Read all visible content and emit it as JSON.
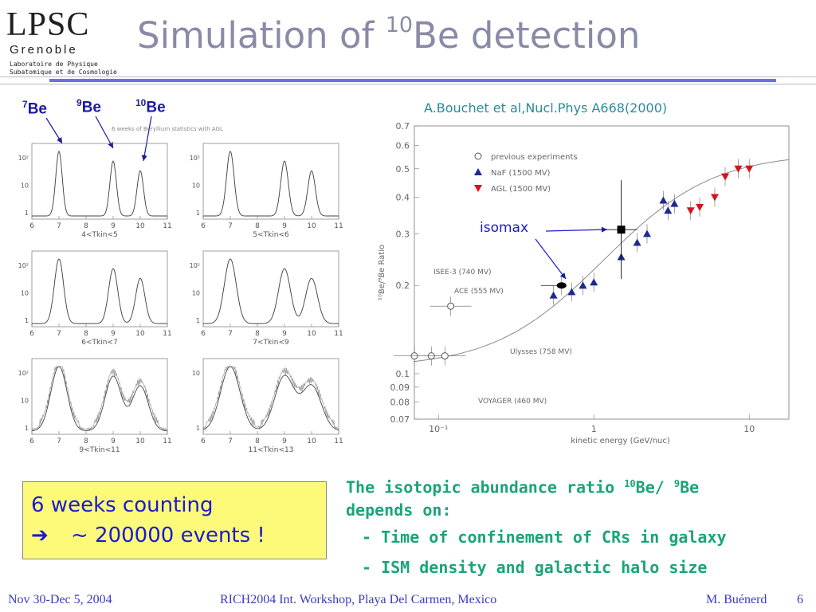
{
  "logo": {
    "main": "LPSC",
    "sub": "Grenoble",
    "lab_line1": "Laboratoire de Physique",
    "lab_line2": "Subatomique et de Cosmologie"
  },
  "title": {
    "prefix": "Simulation of ",
    "sup": "10",
    "suffix": "Be detection"
  },
  "isotopes": [
    {
      "sup": "7",
      "label": "Be"
    },
    {
      "sup": "9",
      "label": "Be"
    },
    {
      "sup": "10",
      "label": "Be"
    }
  ],
  "histograms": {
    "caption": "6 weeks of Beryllium statistics with AGL",
    "x_ticks": [
      "6",
      "7",
      "8",
      "9",
      "10",
      "11"
    ],
    "panels": [
      {
        "label": "4<Tkin<5",
        "y_ticks": [
          "10²",
          "10",
          "1"
        ]
      },
      {
        "label": "5<Tkin<6",
        "y_ticks": [
          "10²",
          "10",
          "1"
        ]
      },
      {
        "label": "6<Tkin<7",
        "y_ticks": [
          "10²",
          "10",
          "1"
        ]
      },
      {
        "label": "7<Tkin<9",
        "y_ticks": [
          "10²",
          "10",
          "1"
        ]
      },
      {
        "label": "9<Tkin<11",
        "y_ticks": [
          "10²",
          "10",
          "1"
        ]
      },
      {
        "label": "11<Tkin<13",
        "y_ticks": [
          "10",
          "1"
        ]
      }
    ]
  },
  "reference": "A.Bouchet et al,Nucl.Phys A668(2000)",
  "isomax_label": "isomax",
  "chart_data": {
    "type": "scatter",
    "xlabel": "kinetic energy (GeV/nuc)",
    "ylabel": "¹⁰Be/⁹Be Ratio",
    "x_scale": "log",
    "y_scale": "log",
    "xlim": [
      0.07,
      18
    ],
    "ylim": [
      0.07,
      0.7
    ],
    "x_ticks": [
      "10⁻¹",
      "1",
      "10"
    ],
    "y_ticks": [
      "0.7",
      "0.6",
      "0.5",
      "0.4",
      "0.3",
      "0.2",
      "0.1",
      "0.09",
      "0.08",
      "0.07"
    ],
    "legend": [
      "previous experiments",
      "NaF (1500 MV)",
      "AGL (1500 MV)"
    ],
    "annotations": [
      "ISEE-3 (740 MV)",
      "ACE (555 MV)",
      "Ulysses (758 MV)",
      "VOYAGER (460 MV)"
    ],
    "series": [
      {
        "name": "previous experiments",
        "x": [
          0.07,
          0.09,
          0.12,
          0.11
        ],
        "y": [
          0.115,
          0.115,
          0.17,
          0.115
        ]
      },
      {
        "name": "NaF (1500 MV)",
        "x": [
          0.55,
          0.72,
          0.85,
          1.0,
          1.5,
          1.9,
          2.2,
          2.8,
          3.0,
          3.3
        ],
        "y": [
          0.185,
          0.19,
          0.2,
          0.205,
          0.25,
          0.28,
          0.3,
          0.39,
          0.36,
          0.38
        ]
      },
      {
        "name": "AGL (1500 MV)",
        "x": [
          4.2,
          4.8,
          6.0,
          7.0,
          8.5,
          10.0
        ],
        "y": [
          0.36,
          0.37,
          0.4,
          0.47,
          0.5,
          0.5
        ]
      },
      {
        "name": "isomax",
        "x": [
          0.62,
          1.5
        ],
        "y": [
          0.2,
          0.31
        ]
      }
    ],
    "colors": {
      "naf": "#1e2a8e",
      "agl": "#d4141e",
      "curve": "#8a8a8a"
    }
  },
  "box": {
    "line1": "6 weeks counting",
    "arrow": "➔",
    "line2": "~ 200000 events !"
  },
  "abundance": {
    "line1_pre": "The isotopic abundance ratio ",
    "sup1": "10",
    "line1_mid": "Be/ ",
    "sup2": "9",
    "line1_post": "Be",
    "line2": "depends on:",
    "bullet1": "- Time of confinement of CRs in galaxy",
    "bullet2": "- ISM density and galactic halo size"
  },
  "footer": {
    "date": "Nov 30-Dec 5, 2004",
    "event": "RICH2004 Int. Workshop, Playa Del Carmen, Mexico",
    "author": "M. Buénerd",
    "page": "6"
  }
}
